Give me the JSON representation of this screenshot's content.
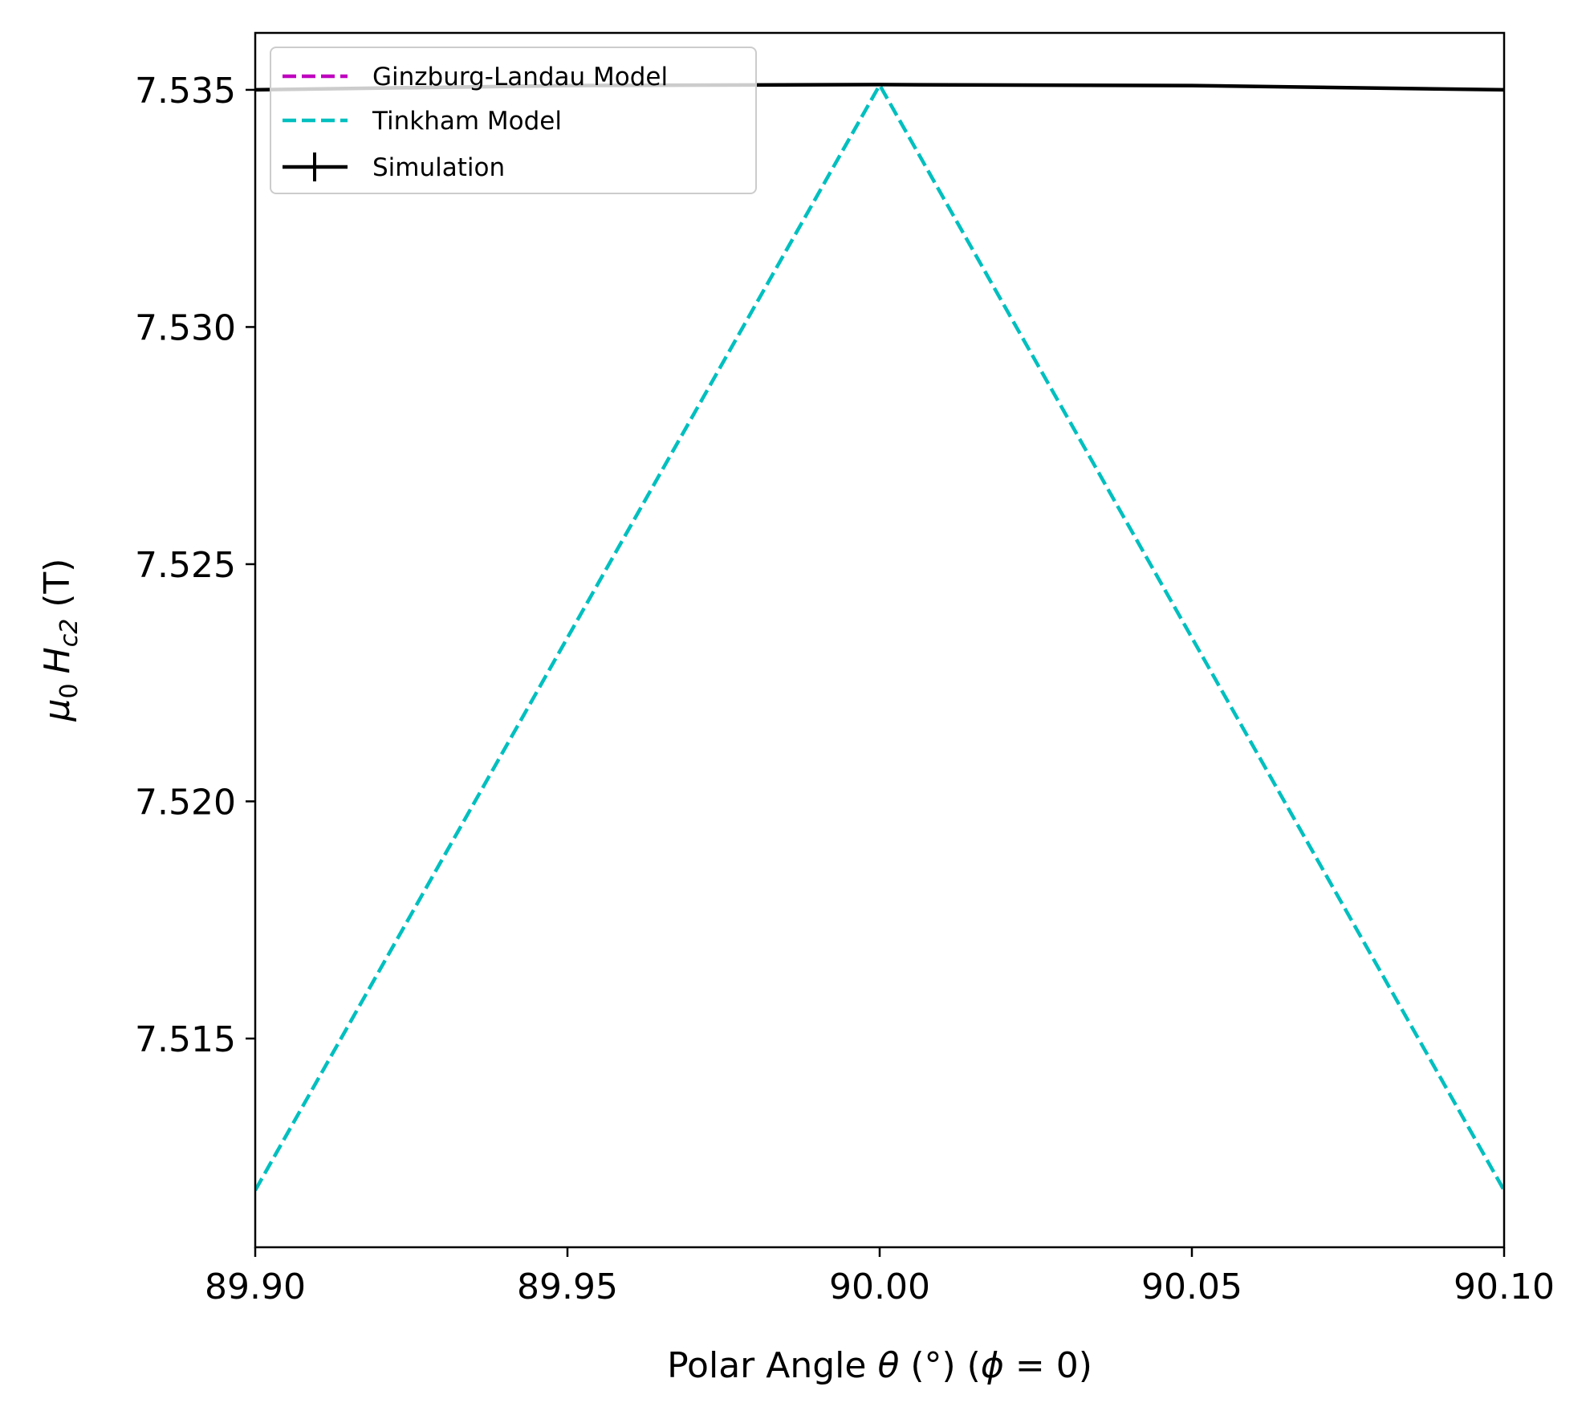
{
  "chart_data": {
    "type": "line",
    "title": "",
    "xlabel": {
      "prefix": "Polar Angle ",
      "theta": "θ",
      "mid": " (°) (",
      "phi": "ϕ",
      "suffix": " = 0)"
    },
    "ylabel": {
      "mu": "μ",
      "mu_sub": "0",
      "h": "H",
      "h_sub": "c2",
      "unit": " (T)"
    },
    "xlim": [
      89.9,
      90.1
    ],
    "ylim": [
      7.5106,
      7.5362
    ],
    "x_ticks": [
      89.9,
      89.95,
      90.0,
      90.05,
      90.1
    ],
    "x_tick_labels": [
      "89.90",
      "89.95",
      "90.00",
      "90.05",
      "90.10"
    ],
    "y_ticks": [
      7.515,
      7.52,
      7.525,
      7.53,
      7.535
    ],
    "y_tick_labels": [
      "7.515",
      "7.520",
      "7.525",
      "7.530",
      "7.535"
    ],
    "grid": false,
    "legend_position": "top-left",
    "series": [
      {
        "name": "Ginzburg-Landau Model",
        "color": "#bf00bf",
        "style": "dashed",
        "x": [],
        "y": []
      },
      {
        "name": "Tinkham Model",
        "color": "#00bfbf",
        "style": "dashed",
        "x": [
          89.9,
          90.0,
          90.1
        ],
        "y": [
          7.5118,
          7.5351,
          7.5118
        ]
      },
      {
        "name": "Simulation",
        "color": "#000000",
        "style": "solid-errorbar",
        "x": [
          89.9,
          89.95,
          90.0,
          90.05,
          90.1
        ],
        "y": [
          7.535,
          7.53509,
          7.53511,
          7.53509,
          7.535
        ]
      }
    ]
  }
}
